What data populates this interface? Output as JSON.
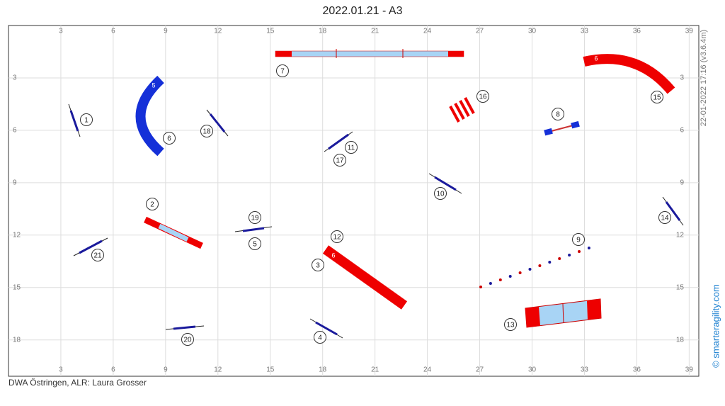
{
  "title": "2022.01.21 - A3",
  "grid": {
    "xticks": [
      3,
      6,
      9,
      12,
      15,
      18,
      21,
      24,
      27,
      30,
      33,
      36,
      39
    ],
    "yticks": [
      3,
      6,
      9,
      12,
      15,
      18
    ]
  },
  "markers": [
    "1",
    "6",
    "18",
    "7",
    "16",
    "8",
    "15",
    "11",
    "17",
    "10",
    "2",
    "19",
    "5",
    "12",
    "21",
    "3",
    "9",
    "14",
    "13",
    "20",
    "4"
  ],
  "tunnel_labels": [
    "5",
    "6",
    "6"
  ],
  "timestamp": "22-01-2022 17:16  (v3.6.4m)",
  "copyright": "© smarteragility.com",
  "footer": "DWA Östringen, ALR: Laura Grosser"
}
